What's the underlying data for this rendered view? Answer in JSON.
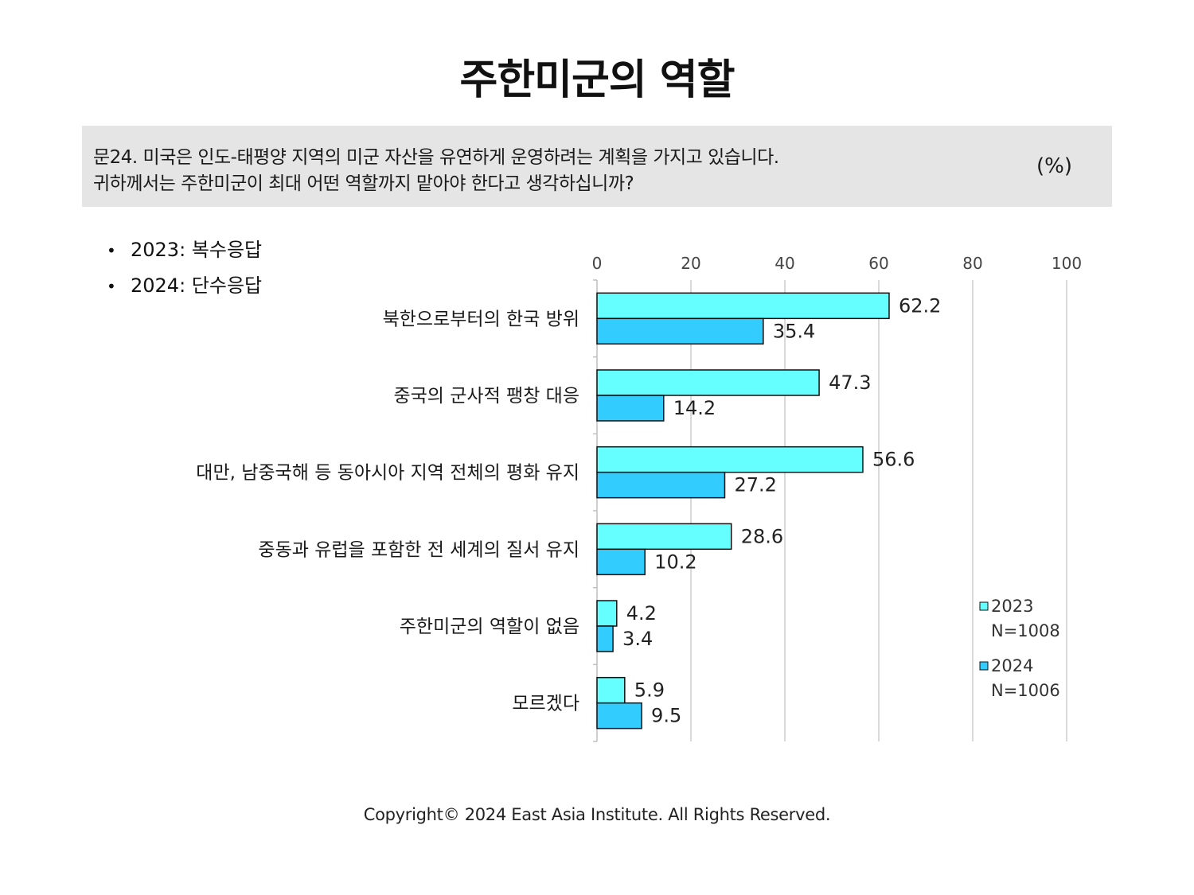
{
  "title": "주한미군의 역할",
  "question": {
    "line1": "문24. 미국은 인도-태평양 지역의 미군 자산을 유연하게 운영하려는 계획을 가지고 있습니다.",
    "line2": "귀하께서는 주한미군이 최대 어떤 역할까지 맡아야 한다고 생각하십니까?",
    "unit": "(%)"
  },
  "notes": [
    "2023: 복수응답",
    "2024: 단수응답"
  ],
  "chart_data": {
    "type": "bar",
    "orientation": "horizontal",
    "categories": [
      "북한으로부터의 한국 방위",
      "중국의 군사적 팽창 대응",
      "대만, 남중국해 등 동아시아 지역 전체의 평화 유지",
      "중동과 유럽을 포함한 전 세계의 질서 유지",
      "주한미군의 역할이 없음",
      "모르겠다"
    ],
    "series": [
      {
        "name": "2023",
        "sample": "N=1008",
        "color": "#66ffff",
        "values": [
          62.2,
          47.3,
          56.6,
          28.6,
          4.2,
          5.9
        ]
      },
      {
        "name": "2024",
        "sample": "N=1006",
        "color": "#33ccff",
        "values": [
          35.4,
          14.2,
          27.2,
          10.2,
          3.4,
          9.5
        ]
      }
    ],
    "xlim": [
      0,
      100
    ],
    "xticks": [
      0,
      20,
      40,
      60,
      80,
      100
    ],
    "grid": true,
    "axis_position": "top",
    "legend_position": "bottom-right"
  },
  "footer": "Copyright© 2024 East Asia Institute. All Rights Reserved."
}
